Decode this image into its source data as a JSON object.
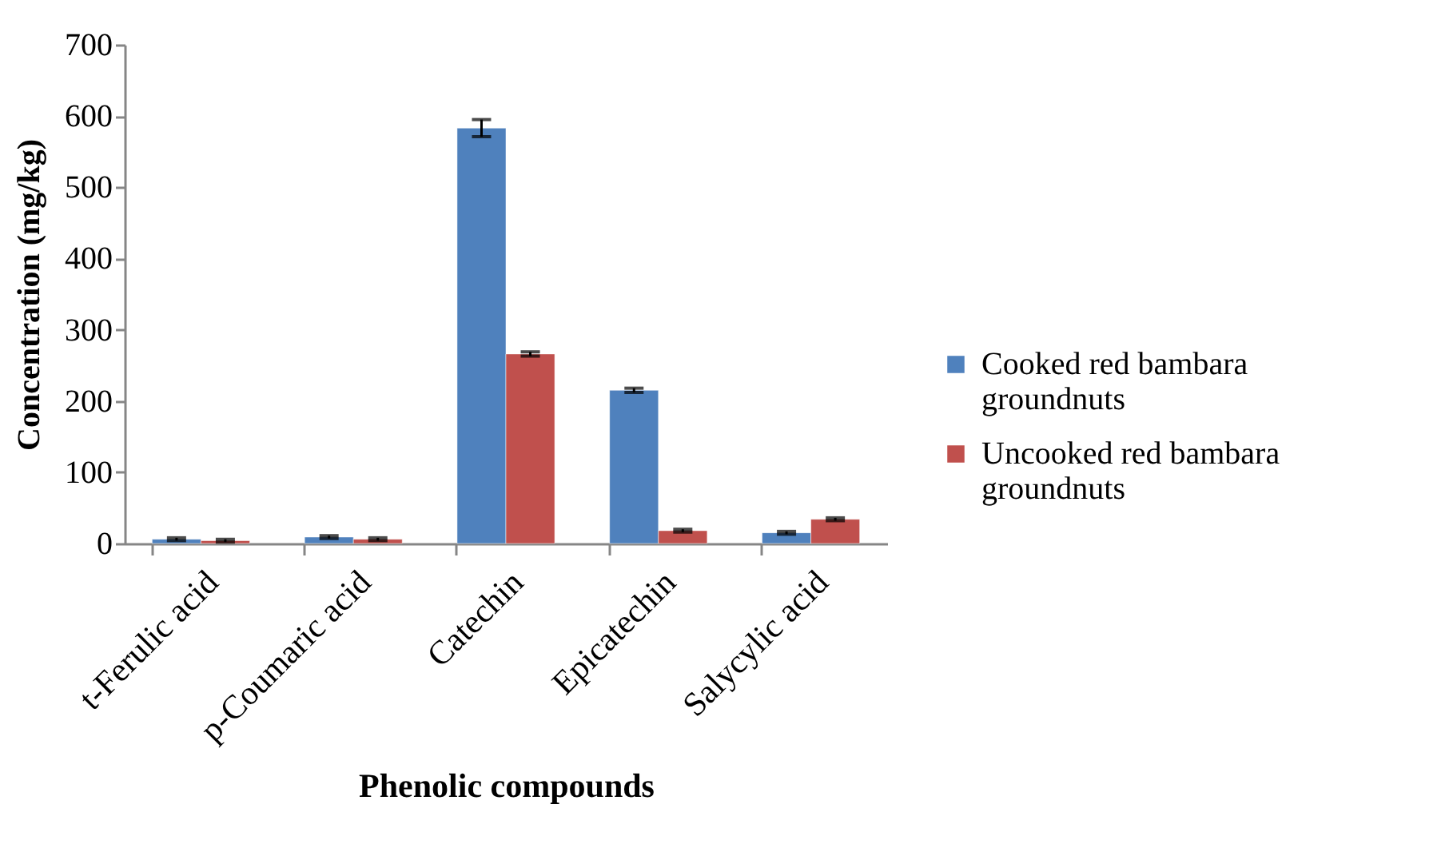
{
  "chart_data": {
    "type": "bar",
    "xlabel": "Phenolic compounds",
    "ylabel": "Concentration (mg/kg)",
    "categories": [
      "t-Ferulic acid",
      "p-Coumaric acid",
      "Catechin",
      "Epicatechin",
      "Salycylic acid"
    ],
    "series": [
      {
        "name": "Cooked red bambara groundnuts",
        "color": "#4f81bd",
        "values": [
          6,
          9,
          583,
          215,
          15
        ],
        "errors": [
          2,
          2,
          12,
          3,
          2
        ]
      },
      {
        "name": "Uncooked red bambara groundnuts",
        "color": "#c0504d",
        "values": [
          4,
          6,
          266,
          18,
          34
        ],
        "errors": [
          2,
          2,
          3,
          2,
          2
        ]
      }
    ],
    "ylim": [
      0,
      700
    ],
    "yticks": [
      0,
      100,
      200,
      300,
      400,
      500,
      600,
      700
    ],
    "grid": false,
    "legend": "right"
  }
}
